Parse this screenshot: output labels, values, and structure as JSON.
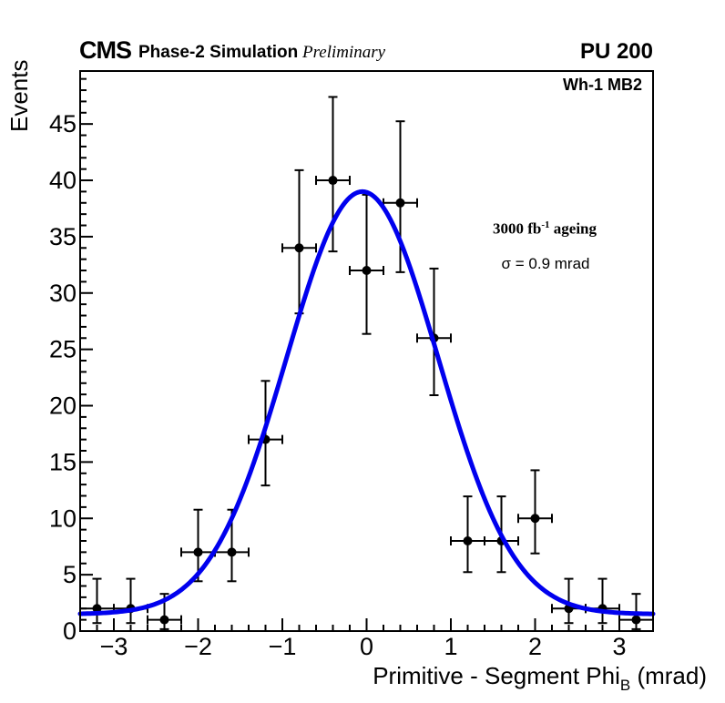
{
  "header": {
    "experiment": "CMS",
    "label": "Phase-2 Simulation",
    "sublabel": "Preliminary",
    "pileup": "PU 200"
  },
  "plot": {
    "corner_label": "Wh-1 MB2",
    "annotation": {
      "lumi_prefix": "3000 fb",
      "lumi_sup": "-1",
      "lumi_suffix": " ageing",
      "sigma_text": "σ = 0.9 mrad"
    }
  },
  "chart_data": {
    "type": "scatter",
    "title": "",
    "xlabel_main": "Primitive - Segment Phi",
    "xlabel_sub": "B",
    "xlabel_suffix": " (mrad)",
    "ylabel": "Events",
    "xlim": [
      -3.4,
      3.4
    ],
    "ylim": [
      0,
      49.7
    ],
    "x_major_ticks": [
      -3,
      -2,
      -1,
      0,
      1,
      2,
      3
    ],
    "x_tick_labels": [
      "−3",
      "−2",
      "−1",
      "0",
      "1",
      "2",
      "3"
    ],
    "x_minor_step": 0.2,
    "y_major_ticks": [
      0,
      5,
      10,
      15,
      20,
      25,
      30,
      35,
      40,
      45
    ],
    "y_minor_step": 1,
    "grid": false,
    "legend": "none",
    "bin_width": 0.4,
    "points": {
      "x": [
        -3.2,
        -2.8,
        -2.4,
        -2,
        -1.6,
        -1.2,
        -0.8,
        -0.4,
        0,
        0.4,
        0.8,
        1.2,
        1.6,
        2,
        2.4,
        2.8,
        3.2
      ],
      "y": [
        2,
        2,
        1,
        7,
        7,
        17,
        34,
        40,
        32,
        38,
        26,
        8,
        8,
        10,
        2,
        2,
        1
      ],
      "yerr_low": [
        1.29,
        1.29,
        0.83,
        2.58,
        2.58,
        4.08,
        5.81,
        6.31,
        5.63,
        6.15,
        5.07,
        2.77,
        2.77,
        3.11,
        1.29,
        1.29,
        0.83
      ],
      "yerr_up": [
        2.64,
        2.64,
        2.3,
        3.77,
        3.77,
        5.2,
        6.9,
        7.4,
        6.72,
        7.24,
        6.17,
        3.95,
        3.95,
        4.27,
        2.64,
        2.64,
        2.3
      ],
      "xerr": 0.2,
      "marker_color": "#000000"
    },
    "fit": {
      "shape": "gaussian_plus_constant",
      "amplitude": 37.5,
      "mean": -0.05,
      "sigma": 0.9,
      "offset": 1.5,
      "color": "#0000ee"
    }
  }
}
